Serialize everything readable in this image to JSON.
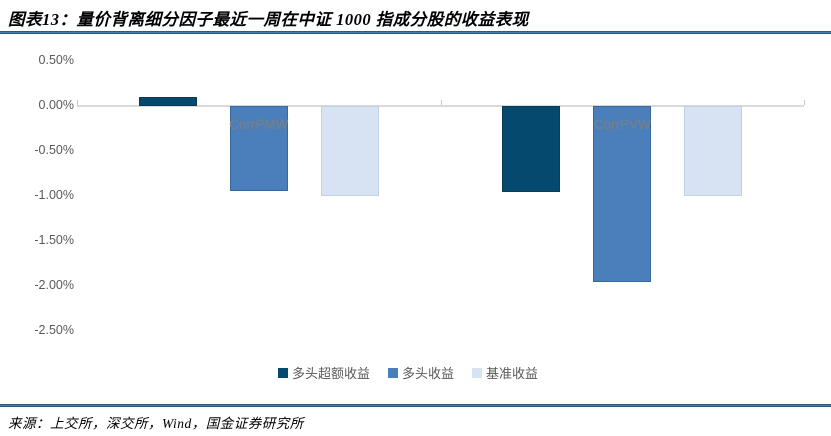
{
  "title": "图表13：量价背离细分因子最近一周在中证 1000 指成分股的收益表现",
  "source": "来源：上交所，深交所，Wind，国金证券研究所",
  "colors": {
    "series_dark": "#05496e",
    "series_medium": "#4a7fbb",
    "series_light": "#d7e3f2",
    "series_dark_border": "#0b3a52",
    "series_medium_border": "#38679e",
    "series_light_border": "#bed2e8",
    "axis_gray": "#d9d9d9",
    "tick_gray": "#c6c6c6",
    "label_gray": "#595959",
    "category_gray": "#7f7f7f",
    "rule_navy": "#16456b"
  },
  "chart_data": {
    "type": "bar",
    "title": "",
    "xlabel": "",
    "ylabel": "",
    "categories": [
      "CorrPMW",
      "CorrPVW"
    ],
    "series": [
      {
        "name": "多头超额收益",
        "color": "#05496e",
        "border": "#0b3a52",
        "values": [
          0.1,
          -0.96
        ]
      },
      {
        "name": "多头收益",
        "color": "#4a7fbb",
        "border": "#38679e",
        "values": [
          -0.95,
          -1.96
        ]
      },
      {
        "name": "基准收益",
        "color": "#d7e3f2",
        "border": "#bed2e8",
        "values": [
          -1.0,
          -1.0
        ]
      }
    ],
    "y_ticks": [
      {
        "label": "0.50%",
        "value": 0.5
      },
      {
        "label": "0.00%",
        "value": 0.0
      },
      {
        "label": "-0.50%",
        "value": -0.5
      },
      {
        "label": "-1.00%",
        "value": -1.0
      },
      {
        "label": "-1.50%",
        "value": -1.5
      },
      {
        "label": "-2.00%",
        "value": -2.0
      },
      {
        "label": "-2.50%",
        "value": -2.5
      }
    ],
    "ylim": [
      -2.5,
      0.5
    ],
    "grid": false,
    "legend_position": "bottom",
    "unit": "percent"
  }
}
